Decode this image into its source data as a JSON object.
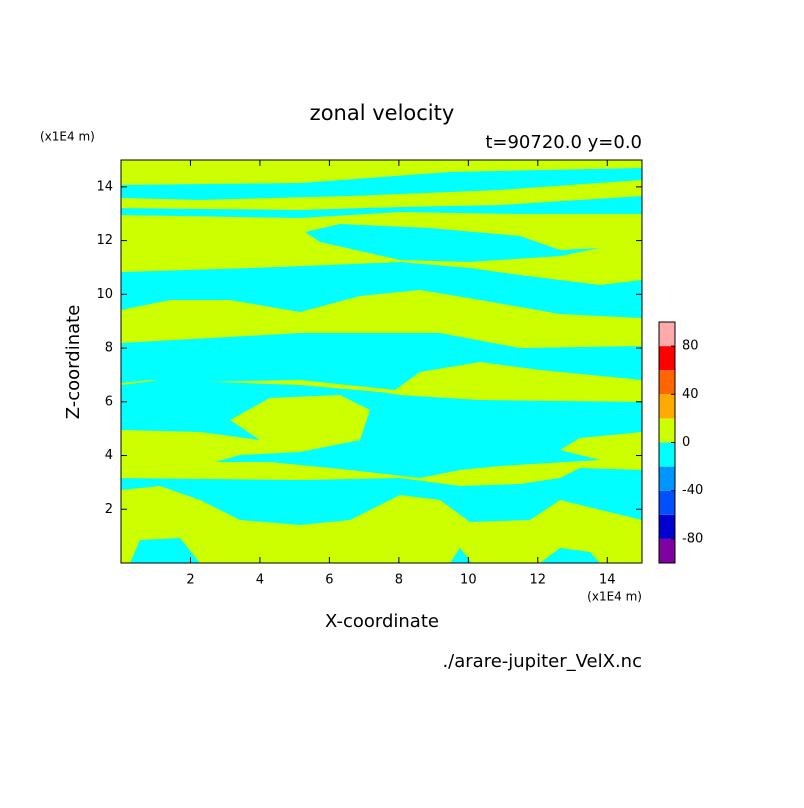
{
  "chart_data": {
    "type": "contour",
    "title": "zonal velocity",
    "subtitle": "t=90720.0 y=0.0",
    "x_label": "X-coordinate",
    "y_label": "Z-coordinate",
    "x_unit": "(x1E4 m)",
    "y_unit": "(x1E4 m)",
    "source": "./arare-jupiter_VelX.nc",
    "xlim": [
      0,
      15
    ],
    "xticks": [
      2,
      4,
      6,
      8,
      10,
      12,
      14
    ],
    "ylim": [
      0,
      15
    ],
    "yticks": [
      2,
      4,
      6,
      8,
      10,
      12,
      14
    ],
    "colorbar": {
      "lim": [
        -100,
        100
      ],
      "levels": [
        -100,
        -80,
        -60,
        -40,
        -20,
        0,
        20,
        40,
        60,
        80,
        100
      ],
      "colors": [
        "#8000a0",
        "#0000d0",
        "#0050ff",
        "#0096ff",
        "#00ffff",
        "#ccff00",
        "#ffaa00",
        "#ff6600",
        "#ff0000",
        "#ffaaaa"
      ],
      "ticks": [
        -80,
        -40,
        0,
        40,
        80
      ]
    }
  }
}
